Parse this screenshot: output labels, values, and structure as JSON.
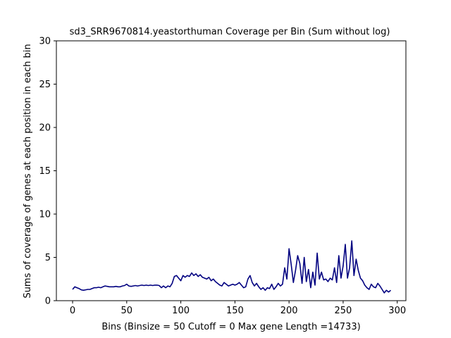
{
  "chart_data": {
    "type": "line",
    "title": "sd3_SRR9670814.yeastorthuman Coverage per Bin (Sum without log)",
    "xlabel": "Bins  (Binsize = 50 Cutoff = 0 Max gene Length =14733)",
    "ylabel": "Sums of coverage of genes at each position in each bin",
    "xlim": [
      -15,
      308
    ],
    "ylim": [
      0,
      30
    ],
    "xticks": [
      0,
      50,
      100,
      150,
      200,
      250,
      300
    ],
    "yticks": [
      0,
      5,
      10,
      15,
      20,
      25,
      30
    ],
    "grid": false,
    "line_color": "#000080",
    "series": [
      {
        "points": [
          [
            0,
            1.3
          ],
          [
            2,
            1.6
          ],
          [
            4,
            1.5
          ],
          [
            6,
            1.4
          ],
          [
            8,
            1.25
          ],
          [
            10,
            1.2
          ],
          [
            12,
            1.25
          ],
          [
            14,
            1.3
          ],
          [
            16,
            1.3
          ],
          [
            18,
            1.4
          ],
          [
            20,
            1.5
          ],
          [
            22,
            1.5
          ],
          [
            24,
            1.55
          ],
          [
            26,
            1.5
          ],
          [
            28,
            1.6
          ],
          [
            30,
            1.7
          ],
          [
            32,
            1.65
          ],
          [
            34,
            1.6
          ],
          [
            36,
            1.6
          ],
          [
            38,
            1.6
          ],
          [
            40,
            1.65
          ],
          [
            42,
            1.6
          ],
          [
            44,
            1.6
          ],
          [
            46,
            1.7
          ],
          [
            48,
            1.75
          ],
          [
            50,
            1.9
          ],
          [
            52,
            1.7
          ],
          [
            54,
            1.65
          ],
          [
            56,
            1.7
          ],
          [
            58,
            1.75
          ],
          [
            60,
            1.7
          ],
          [
            62,
            1.75
          ],
          [
            64,
            1.8
          ],
          [
            66,
            1.75
          ],
          [
            68,
            1.8
          ],
          [
            70,
            1.75
          ],
          [
            72,
            1.8
          ],
          [
            74,
            1.75
          ],
          [
            76,
            1.8
          ],
          [
            78,
            1.8
          ],
          [
            80,
            1.75
          ],
          [
            82,
            1.5
          ],
          [
            84,
            1.7
          ],
          [
            86,
            1.5
          ],
          [
            88,
            1.7
          ],
          [
            90,
            1.6
          ],
          [
            92,
            2.0
          ],
          [
            94,
            2.8
          ],
          [
            96,
            2.9
          ],
          [
            98,
            2.6
          ],
          [
            100,
            2.3
          ],
          [
            102,
            2.9
          ],
          [
            104,
            2.7
          ],
          [
            106,
            2.9
          ],
          [
            108,
            2.8
          ],
          [
            110,
            3.2
          ],
          [
            112,
            2.9
          ],
          [
            114,
            3.1
          ],
          [
            116,
            2.8
          ],
          [
            118,
            3.0
          ],
          [
            120,
            2.7
          ],
          [
            122,
            2.6
          ],
          [
            124,
            2.5
          ],
          [
            126,
            2.7
          ],
          [
            128,
            2.3
          ],
          [
            130,
            2.5
          ],
          [
            132,
            2.2
          ],
          [
            134,
            2.0
          ],
          [
            136,
            1.8
          ],
          [
            138,
            1.7
          ],
          [
            140,
            2.1
          ],
          [
            142,
            1.9
          ],
          [
            144,
            1.7
          ],
          [
            146,
            1.8
          ],
          [
            148,
            1.9
          ],
          [
            150,
            1.8
          ],
          [
            152,
            1.9
          ],
          [
            154,
            2.1
          ],
          [
            156,
            1.8
          ],
          [
            158,
            1.5
          ],
          [
            160,
            1.6
          ],
          [
            162,
            2.5
          ],
          [
            164,
            2.9
          ],
          [
            166,
            2.1
          ],
          [
            168,
            1.7
          ],
          [
            170,
            2.0
          ],
          [
            172,
            1.6
          ],
          [
            174,
            1.3
          ],
          [
            176,
            1.5
          ],
          [
            178,
            1.2
          ],
          [
            180,
            1.5
          ],
          [
            182,
            1.4
          ],
          [
            184,
            1.9
          ],
          [
            186,
            1.3
          ],
          [
            188,
            1.6
          ],
          [
            190,
            2.0
          ],
          [
            192,
            1.7
          ],
          [
            194,
            1.9
          ],
          [
            196,
            3.8
          ],
          [
            198,
            2.5
          ],
          [
            200,
            6.0
          ],
          [
            202,
            4.2
          ],
          [
            204,
            2.1
          ],
          [
            206,
            3.5
          ],
          [
            208,
            5.2
          ],
          [
            210,
            4.3
          ],
          [
            212,
            2.0
          ],
          [
            214,
            5.0
          ],
          [
            216,
            2.2
          ],
          [
            218,
            3.6
          ],
          [
            220,
            1.5
          ],
          [
            222,
            3.3
          ],
          [
            224,
            1.8
          ],
          [
            226,
            5.5
          ],
          [
            228,
            2.5
          ],
          [
            230,
            3.3
          ],
          [
            232,
            2.4
          ],
          [
            234,
            2.5
          ],
          [
            236,
            2.2
          ],
          [
            238,
            2.6
          ],
          [
            240,
            2.4
          ],
          [
            242,
            3.8
          ],
          [
            244,
            2.1
          ],
          [
            246,
            5.2
          ],
          [
            248,
            2.6
          ],
          [
            250,
            4.0
          ],
          [
            252,
            6.5
          ],
          [
            254,
            2.6
          ],
          [
            256,
            3.8
          ],
          [
            258,
            6.9
          ],
          [
            260,
            2.9
          ],
          [
            262,
            4.8
          ],
          [
            264,
            3.5
          ],
          [
            266,
            2.6
          ],
          [
            268,
            2.3
          ],
          [
            270,
            1.8
          ],
          [
            272,
            1.5
          ],
          [
            274,
            1.3
          ],
          [
            276,
            1.9
          ],
          [
            278,
            1.6
          ],
          [
            280,
            1.5
          ],
          [
            282,
            2.0
          ],
          [
            284,
            1.7
          ],
          [
            286,
            1.3
          ],
          [
            288,
            0.9
          ],
          [
            290,
            1.2
          ],
          [
            292,
            1.0
          ],
          [
            294,
            1.2
          ]
        ]
      }
    ]
  }
}
